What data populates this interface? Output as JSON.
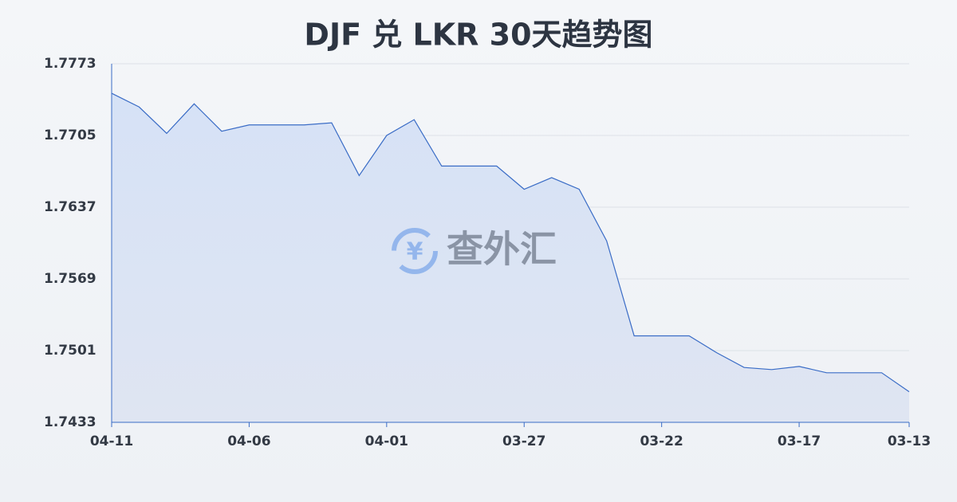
{
  "chart_data": {
    "type": "area",
    "title": "DJF 兑 LKR 30天趋势图",
    "watermark": "查外汇",
    "categories": [
      "04-11",
      null,
      null,
      null,
      null,
      "04-06",
      null,
      null,
      null,
      null,
      "04-01",
      null,
      null,
      null,
      null,
      "03-27",
      null,
      null,
      null,
      null,
      "03-22",
      null,
      null,
      null,
      null,
      "03-17",
      null,
      null,
      null,
      "03-13"
    ],
    "series": [
      {
        "color": "#3a6cc6",
        "values": [
          1.7745,
          1.7732,
          1.7707,
          1.7735,
          1.7709,
          1.7715,
          1.7715,
          1.7715,
          1.7717,
          1.7667,
          1.7705,
          1.772,
          1.7676,
          1.7676,
          1.7676,
          1.7654,
          1.7665,
          1.7654,
          1.7605,
          1.7515,
          1.7515,
          1.7515,
          1.7499,
          1.7485,
          1.7483,
          1.7486,
          1.748,
          1.748,
          1.748,
          1.7462
        ]
      }
    ],
    "ylim": [
      1.7433,
      1.7773
    ],
    "yticks": [
      1.7433,
      1.7501,
      1.7569,
      1.7637,
      1.7705,
      1.7773
    ],
    "grid": true
  }
}
